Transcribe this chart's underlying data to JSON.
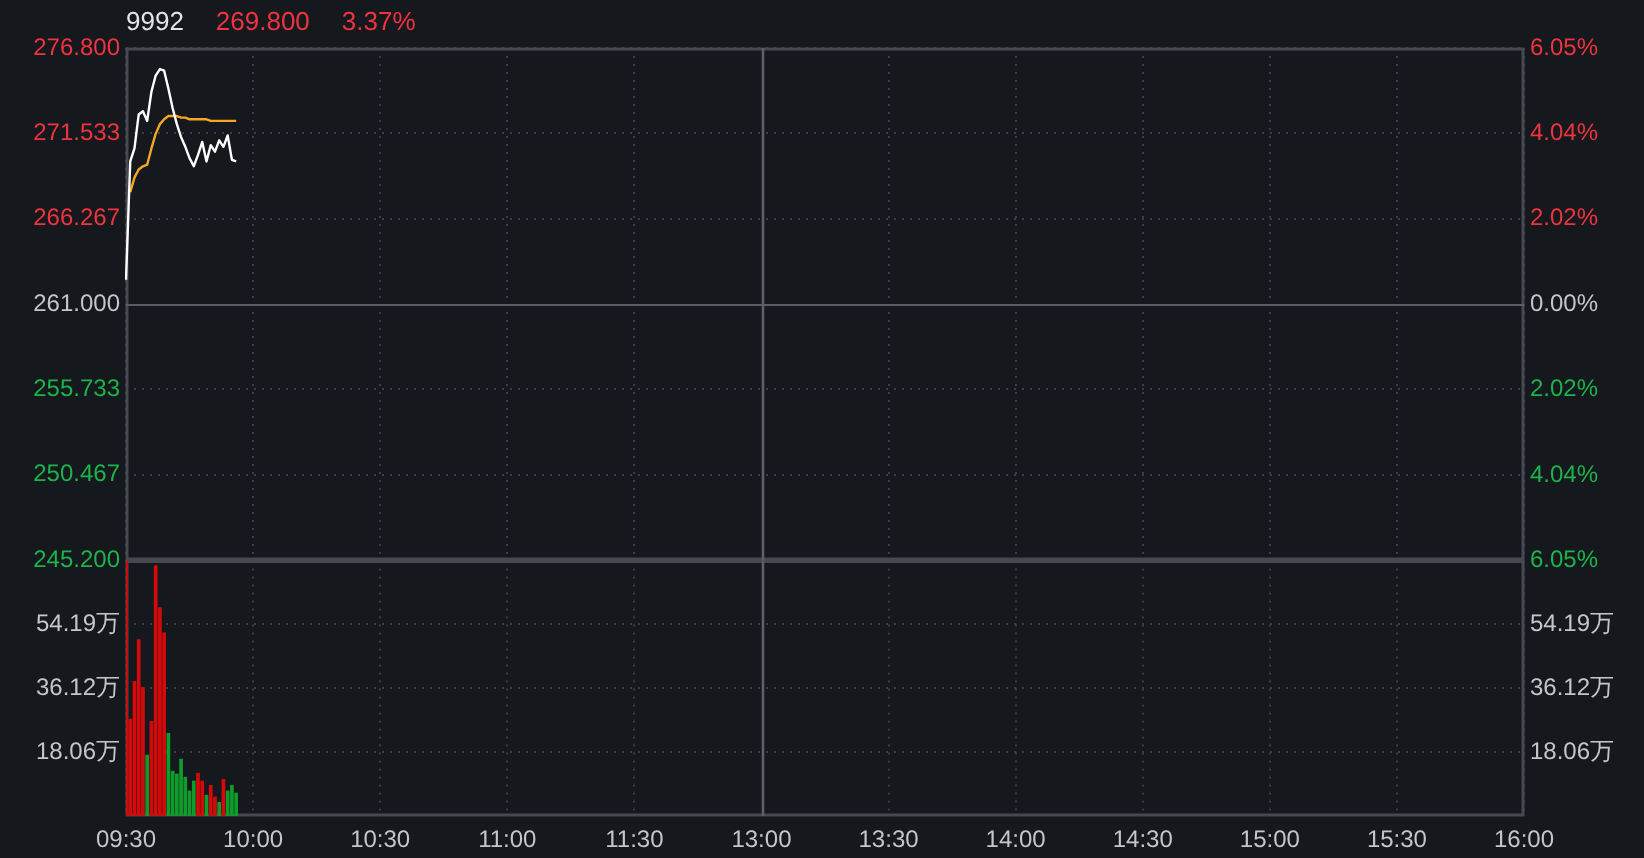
{
  "chart_data": [
    {
      "type": "line",
      "title": "9992",
      "annotations": [
        "269.800",
        "3.37%"
      ],
      "categories": [
        "09:30",
        null,
        null,
        null,
        null,
        null,
        null,
        null,
        null,
        null,
        null,
        null,
        null,
        null,
        null,
        null,
        null,
        null,
        null,
        null,
        null,
        null,
        null,
        null,
        null,
        null,
        null,
        null,
        null,
        null,
        "10:00",
        null,
        null,
        null,
        null,
        null,
        null,
        null,
        null,
        null,
        null,
        null,
        null,
        null,
        null,
        null,
        null,
        null,
        null,
        null,
        null,
        null,
        null,
        null,
        null,
        null,
        null,
        null,
        null,
        null,
        "10:30",
        null,
        null,
        null,
        null,
        null,
        null,
        null,
        null,
        null,
        null,
        null,
        null,
        null,
        null,
        null,
        null,
        null,
        null,
        null,
        null,
        null,
        null,
        null,
        null,
        null,
        null,
        null,
        null,
        null,
        "11:00",
        null,
        null,
        null,
        null,
        null,
        null,
        null,
        null,
        null,
        null,
        null,
        null,
        null,
        null,
        null,
        null,
        null,
        null,
        null,
        null,
        null,
        null,
        null,
        null,
        null,
        null,
        null,
        null,
        null,
        "11:30",
        null,
        null,
        null,
        null,
        null,
        null,
        null,
        null,
        null,
        null,
        null,
        null,
        null,
        null,
        null,
        null,
        null,
        null,
        null,
        null,
        null,
        null,
        null,
        null,
        null,
        null,
        null,
        null,
        null,
        "13:00",
        null,
        null,
        null,
        null,
        null,
        null,
        null,
        null,
        null,
        null,
        null,
        null,
        null,
        null,
        null,
        null,
        null,
        null,
        null,
        null,
        null,
        null,
        null,
        null,
        null,
        null,
        null,
        null,
        null,
        "13:30",
        null,
        null,
        null,
        null,
        null,
        null,
        null,
        null,
        null,
        null,
        null,
        null,
        null,
        null,
        null,
        null,
        null,
        null,
        null,
        null,
        null,
        null,
        null,
        null,
        null,
        null,
        null,
        null,
        null,
        "14:00",
        null,
        null,
        null,
        null,
        null,
        null,
        null,
        null,
        null,
        null,
        null,
        null,
        null,
        null,
        null,
        null,
        null,
        null,
        null,
        null,
        null,
        null,
        null,
        null,
        null,
        null,
        null,
        null,
        null,
        "14:30",
        null,
        null,
        null,
        null,
        null,
        null,
        null,
        null,
        null,
        null,
        null,
        null,
        null,
        null,
        null,
        null,
        null,
        null,
        null,
        null,
        null,
        null,
        null,
        null,
        null,
        null,
        null,
        null,
        null,
        "15:00",
        null,
        null,
        null,
        null,
        null,
        null,
        null,
        null,
        null,
        null,
        null,
        null,
        null,
        null,
        null,
        null,
        null,
        null,
        null,
        null,
        null,
        null,
        null,
        null,
        null,
        null,
        null,
        null,
        null,
        "15:30",
        null,
        null,
        null,
        null,
        null,
        null,
        null,
        null,
        null,
        null,
        null,
        null,
        null,
        null,
        null,
        null,
        null,
        null,
        null,
        null,
        null,
        null,
        null,
        null,
        null,
        null,
        null,
        null,
        null,
        "16:00"
      ],
      "series": [
        {
          "color": "#ffffff",
          "values": [
            262.5,
            269.8,
            270.6,
            272.7,
            272.9,
            272.3,
            274.1,
            275.1,
            275.5,
            275.4,
            274.3,
            273.1,
            272.1,
            271.3,
            270.7,
            270.0,
            269.5,
            270.2,
            271.0,
            269.8,
            270.8,
            270.4,
            271.1,
            270.7,
            271.4,
            269.9,
            269.8,
            null,
            null,
            null,
            null,
            null,
            null,
            null,
            null,
            null,
            null,
            null,
            null,
            null,
            null,
            null,
            null,
            null,
            null,
            null,
            null,
            null,
            null,
            null,
            null,
            null,
            null,
            null,
            null,
            null,
            null,
            null,
            null,
            null,
            null,
            null,
            null,
            null,
            null,
            null,
            null,
            null,
            null,
            null,
            null,
            null,
            null,
            null,
            null,
            null,
            null,
            null,
            null,
            null,
            null,
            null,
            null,
            null,
            null,
            null,
            null,
            null,
            null,
            null,
            null,
            null,
            null,
            null,
            null,
            null,
            null,
            null,
            null,
            null,
            null,
            null,
            null,
            null,
            null,
            null,
            null,
            null,
            null,
            null,
            null,
            null,
            null,
            null,
            null,
            null,
            null,
            null,
            null,
            null,
            null,
            null,
            null,
            null,
            null,
            null,
            null,
            null,
            null,
            null,
            null,
            null,
            null,
            null,
            null,
            null,
            null,
            null,
            null,
            null,
            null,
            null,
            null,
            null,
            null,
            null,
            null,
            null,
            null,
            null,
            null,
            null,
            null,
            null,
            null,
            null,
            null,
            null,
            null,
            null,
            null,
            null,
            null,
            null,
            null,
            null,
            null,
            null,
            null,
            null,
            null,
            null,
            null,
            null,
            null,
            null,
            null,
            null,
            null,
            null,
            null,
            null,
            null,
            null,
            null,
            null,
            null,
            null,
            null,
            null,
            null,
            null,
            null,
            null,
            null,
            null,
            null,
            null,
            null,
            null,
            null,
            null,
            null,
            null,
            null,
            null,
            null,
            null,
            null,
            null,
            null,
            null,
            null,
            null,
            null,
            null,
            null,
            null,
            null,
            null,
            null,
            null,
            null,
            null,
            null,
            null,
            null,
            null,
            null,
            null,
            null,
            null,
            null,
            null,
            null,
            null,
            null,
            null,
            null,
            null,
            null,
            null,
            null,
            null,
            null,
            null,
            null,
            null,
            null,
            null,
            null,
            null,
            null,
            null,
            null,
            null,
            null,
            null,
            null,
            null,
            null,
            null,
            null,
            null,
            null,
            null,
            null,
            null,
            null,
            null,
            null,
            null,
            null,
            null,
            null,
            null,
            null,
            null,
            null,
            null,
            null,
            null,
            null,
            null,
            null,
            null,
            null,
            null,
            null,
            null,
            null,
            null,
            null,
            null,
            null,
            null,
            null,
            null,
            null,
            null,
            null,
            null,
            null,
            null,
            null,
            null,
            null,
            null,
            null,
            null,
            null,
            null,
            null,
            null,
            null,
            null,
            null,
            null,
            null,
            null,
            null,
            null,
            null,
            null,
            null,
            null,
            null,
            null,
            null,
            null,
            null
          ]
        },
        {
          "color": "#f5a623",
          "values": [
            null,
            267.9,
            268.8,
            269.3,
            269.5,
            269.6,
            270.6,
            271.5,
            272.1,
            272.4,
            272.6,
            272.6,
            272.6,
            272.5,
            272.5,
            272.4,
            272.4,
            272.4,
            272.4,
            272.4,
            272.3,
            272.3,
            272.3,
            272.3,
            272.3,
            272.3,
            272.3,
            null,
            null,
            null,
            null,
            null,
            null,
            null,
            null,
            null,
            null,
            null,
            null,
            null,
            null,
            null,
            null,
            null,
            null,
            null,
            null,
            null,
            null,
            null,
            null,
            null,
            null,
            null,
            null,
            null,
            null,
            null,
            null,
            null,
            null,
            null,
            null,
            null,
            null,
            null,
            null,
            null,
            null,
            null,
            null,
            null,
            null,
            null,
            null,
            null,
            null,
            null,
            null,
            null,
            null,
            null,
            null,
            null,
            null,
            null,
            null,
            null,
            null,
            null,
            null,
            null,
            null,
            null,
            null,
            null,
            null,
            null,
            null,
            null,
            null,
            null,
            null,
            null,
            null,
            null,
            null,
            null,
            null,
            null,
            null,
            null,
            null,
            null,
            null,
            null,
            null,
            null,
            null,
            null,
            null,
            null,
            null,
            null,
            null,
            null,
            null,
            null,
            null,
            null,
            null,
            null,
            null,
            null,
            null,
            null,
            null,
            null,
            null,
            null,
            null,
            null,
            null,
            null,
            null,
            null,
            null,
            null,
            null,
            null,
            null,
            null,
            null,
            null,
            null,
            null,
            null,
            null,
            null,
            null,
            null,
            null,
            null,
            null,
            null,
            null,
            null,
            null,
            null,
            null,
            null,
            null,
            null,
            null,
            null,
            null,
            null,
            null,
            null,
            null,
            null,
            null,
            null,
            null,
            null,
            null,
            null,
            null,
            null,
            null,
            null,
            null,
            null,
            null,
            null,
            null,
            null,
            null,
            null,
            null,
            null,
            null,
            null,
            null,
            null,
            null,
            null,
            null,
            null,
            null,
            null,
            null,
            null,
            null,
            null,
            null,
            null,
            null,
            null,
            null,
            null,
            null,
            null,
            null,
            null,
            null,
            null,
            null,
            null,
            null,
            null,
            null,
            null,
            null,
            null,
            null,
            null,
            null,
            null,
            null,
            null,
            null,
            null,
            null,
            null,
            null,
            null,
            null,
            null,
            null,
            null,
            null,
            null,
            null,
            null,
            null,
            null,
            null,
            null,
            null,
            null,
            null,
            null,
            null,
            null,
            null,
            null,
            null,
            null,
            null,
            null,
            null,
            null,
            null,
            null,
            null,
            null,
            null,
            null,
            null,
            null,
            null,
            null,
            null,
            null,
            null,
            null,
            null,
            null,
            null,
            null,
            null,
            null,
            null,
            null,
            null,
            null,
            null,
            null,
            null,
            null,
            null,
            null,
            null,
            null,
            null,
            null,
            null,
            null,
            null,
            null,
            null,
            null,
            null,
            null,
            null,
            null,
            null,
            null,
            null,
            null,
            null,
            null,
            null,
            null,
            null,
            null,
            null,
            null,
            null,
            null
          ]
        }
      ],
      "ylim": [
        245.2,
        276.8
      ],
      "yticks": [
        {
          "value": 276.8,
          "label": "276.800"
        },
        271.533,
        266.267,
        {
          "value": 261,
          "label": "261.000"
        },
        255.733,
        250.467,
        {
          "value": 245.2,
          "label": "245.200"
        }
      ],
      "y2lim": [
        -6.05,
        6.05
      ],
      "y2ticks": [
        {
          "value": 6.05,
          "label": "6.05%"
        },
        {
          "value": 4.04,
          "label": "4.04%"
        },
        {
          "value": 2.02,
          "label": "2.02%"
        },
        {
          "value": 0,
          "label": "0.00%"
        },
        {
          "value": -2.02,
          "label": "2.02%"
        },
        {
          "value": -4.04,
          "label": "4.04%"
        },
        {
          "value": -6.05,
          "label": "6.05%"
        }
      ],
      "ref_lines": [
        {
          "axis": "y",
          "value": 261
        },
        {
          "axis": "x",
          "value": "13:00"
        }
      ],
      "grid": true,
      "tick_labels": "y"
    },
    {
      "type": "bar",
      "categories": [
        "09:30",
        null,
        null,
        null,
        null,
        null,
        null,
        null,
        null,
        null,
        null,
        null,
        null,
        null,
        null,
        null,
        null,
        null,
        null,
        null,
        null,
        null,
        null,
        null,
        null,
        null,
        null,
        null,
        null,
        null,
        "10:00",
        null,
        null,
        null,
        null,
        null,
        null,
        null,
        null,
        null,
        null,
        null,
        null,
        null,
        null,
        null,
        null,
        null,
        null,
        null,
        null,
        null,
        null,
        null,
        null,
        null,
        null,
        null,
        null,
        null,
        "10:30",
        null,
        null,
        null,
        null,
        null,
        null,
        null,
        null,
        null,
        null,
        null,
        null,
        null,
        null,
        null,
        null,
        null,
        null,
        null,
        null,
        null,
        null,
        null,
        null,
        null,
        null,
        null,
        null,
        null,
        "11:00",
        null,
        null,
        null,
        null,
        null,
        null,
        null,
        null,
        null,
        null,
        null,
        null,
        null,
        null,
        null,
        null,
        null,
        null,
        null,
        null,
        null,
        null,
        null,
        null,
        null,
        null,
        null,
        null,
        null,
        "11:30",
        null,
        null,
        null,
        null,
        null,
        null,
        null,
        null,
        null,
        null,
        null,
        null,
        null,
        null,
        null,
        null,
        null,
        null,
        null,
        null,
        null,
        null,
        null,
        null,
        null,
        null,
        null,
        null,
        null,
        "13:00",
        null,
        null,
        null,
        null,
        null,
        null,
        null,
        null,
        null,
        null,
        null,
        null,
        null,
        null,
        null,
        null,
        null,
        null,
        null,
        null,
        null,
        null,
        null,
        null,
        null,
        null,
        null,
        null,
        null,
        "13:30",
        null,
        null,
        null,
        null,
        null,
        null,
        null,
        null,
        null,
        null,
        null,
        null,
        null,
        null,
        null,
        null,
        null,
        null,
        null,
        null,
        null,
        null,
        null,
        null,
        null,
        null,
        null,
        null,
        null,
        "14:00",
        null,
        null,
        null,
        null,
        null,
        null,
        null,
        null,
        null,
        null,
        null,
        null,
        null,
        null,
        null,
        null,
        null,
        null,
        null,
        null,
        null,
        null,
        null,
        null,
        null,
        null,
        null,
        null,
        null,
        "14:30",
        null,
        null,
        null,
        null,
        null,
        null,
        null,
        null,
        null,
        null,
        null,
        null,
        null,
        null,
        null,
        null,
        null,
        null,
        null,
        null,
        null,
        null,
        null,
        null,
        null,
        null,
        null,
        null,
        null,
        "15:00",
        null,
        null,
        null,
        null,
        null,
        null,
        null,
        null,
        null,
        null,
        null,
        null,
        null,
        null,
        null,
        null,
        null,
        null,
        null,
        null,
        null,
        null,
        null,
        null,
        null,
        null,
        null,
        null,
        null,
        "15:30",
        null,
        null,
        null,
        null,
        null,
        null,
        null,
        null,
        null,
        null,
        null,
        null,
        null,
        null,
        null,
        null,
        null,
        null,
        null,
        null,
        null,
        null,
        null,
        null,
        null,
        null,
        null,
        null,
        null,
        "16:00"
      ],
      "values": [
        72.0,
        27.3,
        38.0,
        49.8,
        36.3,
        17.1,
        26.7,
        70.7,
        58.8,
        51.7,
        23.3,
        12.6,
        11.8,
        16.0,
        10.9,
        7.0,
        9.8,
        12.0,
        9.8,
        5.8,
        8.6,
        5.3,
        3.8,
        10.3,
        7.0,
        8.6,
        6.4,
        null,
        null,
        null,
        null,
        null,
        null,
        null,
        null,
        null,
        null,
        null,
        null,
        null,
        null,
        null,
        null,
        null,
        null,
        null,
        null,
        null,
        null,
        null,
        null,
        null,
        null,
        null,
        null,
        null,
        null,
        null,
        null,
        null,
        null,
        null,
        null,
        null,
        null,
        null,
        null,
        null,
        null,
        null,
        null,
        null,
        null,
        null,
        null,
        null,
        null,
        null,
        null,
        null,
        null,
        null,
        null,
        null,
        null,
        null,
        null,
        null,
        null,
        null,
        null,
        null,
        null,
        null,
        null,
        null,
        null,
        null,
        null,
        null,
        null,
        null,
        null,
        null,
        null,
        null,
        null,
        null,
        null,
        null,
        null,
        null,
        null,
        null,
        null,
        null,
        null,
        null,
        null,
        null,
        null,
        null,
        null,
        null,
        null,
        null,
        null,
        null,
        null,
        null,
        null,
        null,
        null,
        null,
        null,
        null,
        null,
        null,
        null,
        null,
        null,
        null,
        null,
        null,
        null,
        null,
        null,
        null,
        null,
        null,
        null,
        null,
        null,
        null,
        null,
        null,
        null,
        null,
        null,
        null,
        null,
        null,
        null,
        null,
        null,
        null,
        null,
        null,
        null,
        null,
        null,
        null,
        null,
        null,
        null,
        null,
        null,
        null,
        null,
        null,
        null,
        null,
        null,
        null,
        null,
        null,
        null,
        null,
        null,
        null,
        null,
        null,
        null,
        null,
        null,
        null,
        null,
        null,
        null,
        null,
        null,
        null,
        null,
        null,
        null,
        null,
        null,
        null,
        null,
        null,
        null,
        null,
        null,
        null,
        null,
        null,
        null,
        null,
        null,
        null,
        null,
        null,
        null,
        null,
        null,
        null,
        null,
        null,
        null,
        null,
        null,
        null,
        null,
        null,
        null,
        null,
        null,
        null,
        null,
        null,
        null,
        null,
        null,
        null,
        null,
        null,
        null,
        null,
        null,
        null,
        null,
        null,
        null,
        null,
        null,
        null,
        null,
        null,
        null,
        null,
        null,
        null,
        null,
        null,
        null,
        null,
        null,
        null,
        null,
        null,
        null,
        null,
        null,
        null,
        null,
        null,
        null,
        null,
        null,
        null,
        null,
        null,
        null,
        null,
        null,
        null,
        null,
        null,
        null,
        null,
        null,
        null,
        null,
        null,
        null,
        null,
        null,
        null,
        null,
        null,
        null,
        null,
        null,
        null,
        null,
        null,
        null,
        null,
        null,
        null,
        null,
        null,
        null,
        null,
        null,
        null,
        null,
        null,
        null,
        null,
        null,
        null,
        null,
        null,
        null,
        null,
        null,
        null,
        null,
        null,
        null
      ],
      "colors": [
        "#d40a0a",
        "#d40a0a",
        "#d40a0a",
        "#d40a0a",
        "#d40a0a",
        "#109c2a",
        "#d40a0a",
        "#d40a0a",
        "#d40a0a",
        "#d40a0a",
        "#109c2a",
        "#109c2a",
        "#109c2a",
        "#109c2a",
        "#109c2a",
        "#109c2a",
        "#109c2a",
        "#d40a0a",
        "#d40a0a",
        "#109c2a",
        "#d40a0a",
        "#d40a0a",
        "#109c2a",
        "#d40a0a",
        "#109c2a",
        "#109c2a",
        "#109c2a",
        null,
        null,
        null,
        null,
        null,
        null,
        null,
        null,
        null,
        null,
        null,
        null,
        null,
        null,
        null,
        null,
        null,
        null,
        null,
        null,
        null,
        null,
        null,
        null,
        null,
        null,
        null,
        null,
        null,
        null,
        null,
        null,
        null,
        null,
        null,
        null,
        null,
        null,
        null,
        null,
        null,
        null,
        null,
        null,
        null,
        null,
        null,
        null,
        null,
        null,
        null,
        null,
        null,
        null,
        null,
        null,
        null,
        null,
        null,
        null,
        null,
        null,
        null,
        null,
        null,
        null,
        null,
        null,
        null,
        null,
        null,
        null,
        null,
        null,
        null,
        null,
        null,
        null,
        null,
        null,
        null,
        null,
        null,
        null,
        null,
        null,
        null,
        null,
        null,
        null,
        null,
        null,
        null,
        null,
        null,
        null,
        null,
        null,
        null,
        null,
        null,
        null,
        null,
        null,
        null,
        null,
        null,
        null,
        null,
        null,
        null,
        null,
        null,
        null,
        null,
        null,
        null,
        null,
        null,
        null,
        null,
        null,
        null,
        null,
        null,
        null,
        null,
        null,
        null,
        null,
        null,
        null,
        null,
        null,
        null,
        null,
        null,
        null,
        null,
        null,
        null,
        null,
        null,
        null,
        null,
        null,
        null,
        null,
        null,
        null,
        null,
        null,
        null,
        null,
        null,
        null,
        null,
        null,
        null,
        null,
        null,
        null,
        null,
        null,
        null,
        null,
        null,
        null,
        null,
        null,
        null,
        null,
        null,
        null,
        null,
        null,
        null,
        null,
        null,
        null,
        null,
        null,
        null,
        null,
        null,
        null,
        null,
        null,
        null,
        null,
        null,
        null,
        null,
        null,
        null,
        null,
        null,
        null,
        null,
        null,
        null,
        null,
        null,
        null,
        null,
        null,
        null,
        null,
        null,
        null,
        null,
        null,
        null,
        null,
        null,
        null,
        null,
        null,
        null,
        null,
        null,
        null,
        null,
        null,
        null,
        null,
        null,
        null,
        null,
        null,
        null,
        null,
        null,
        null,
        null,
        null,
        null,
        null,
        null,
        null,
        null,
        null,
        null,
        null,
        null,
        null,
        null,
        null,
        null,
        null,
        null,
        null,
        null,
        null,
        null,
        null,
        null,
        null,
        null,
        null,
        null,
        null,
        null,
        null,
        null,
        null,
        null,
        null,
        null,
        null,
        null,
        null,
        null,
        null,
        null,
        null,
        null,
        null,
        null,
        null,
        null,
        null,
        null,
        null,
        null,
        null,
        null,
        null,
        null,
        null,
        null,
        null,
        null,
        null,
        null,
        null,
        null,
        null,
        null,
        null,
        null,
        null,
        null,
        null
      ],
      "ylim": [
        0,
        72.25
      ],
      "yticks": [
        {
          "value": 18.06,
          "label": "18.06万"
        },
        {
          "value": 36.12,
          "label": "36.12万"
        },
        {
          "value": 54.19,
          "label": "54.19万"
        }
      ],
      "y2lim": [
        0,
        72.25
      ],
      "y2ticks": [
        {
          "value": 18.06,
          "label": "18.06万"
        },
        {
          "value": 36.12,
          "label": "36.12万"
        },
        {
          "value": 54.19,
          "label": "54.19万"
        }
      ],
      "ref_lines": [
        {
          "axis": "x",
          "value": "13:00"
        }
      ],
      "grid": true
    }
  ]
}
